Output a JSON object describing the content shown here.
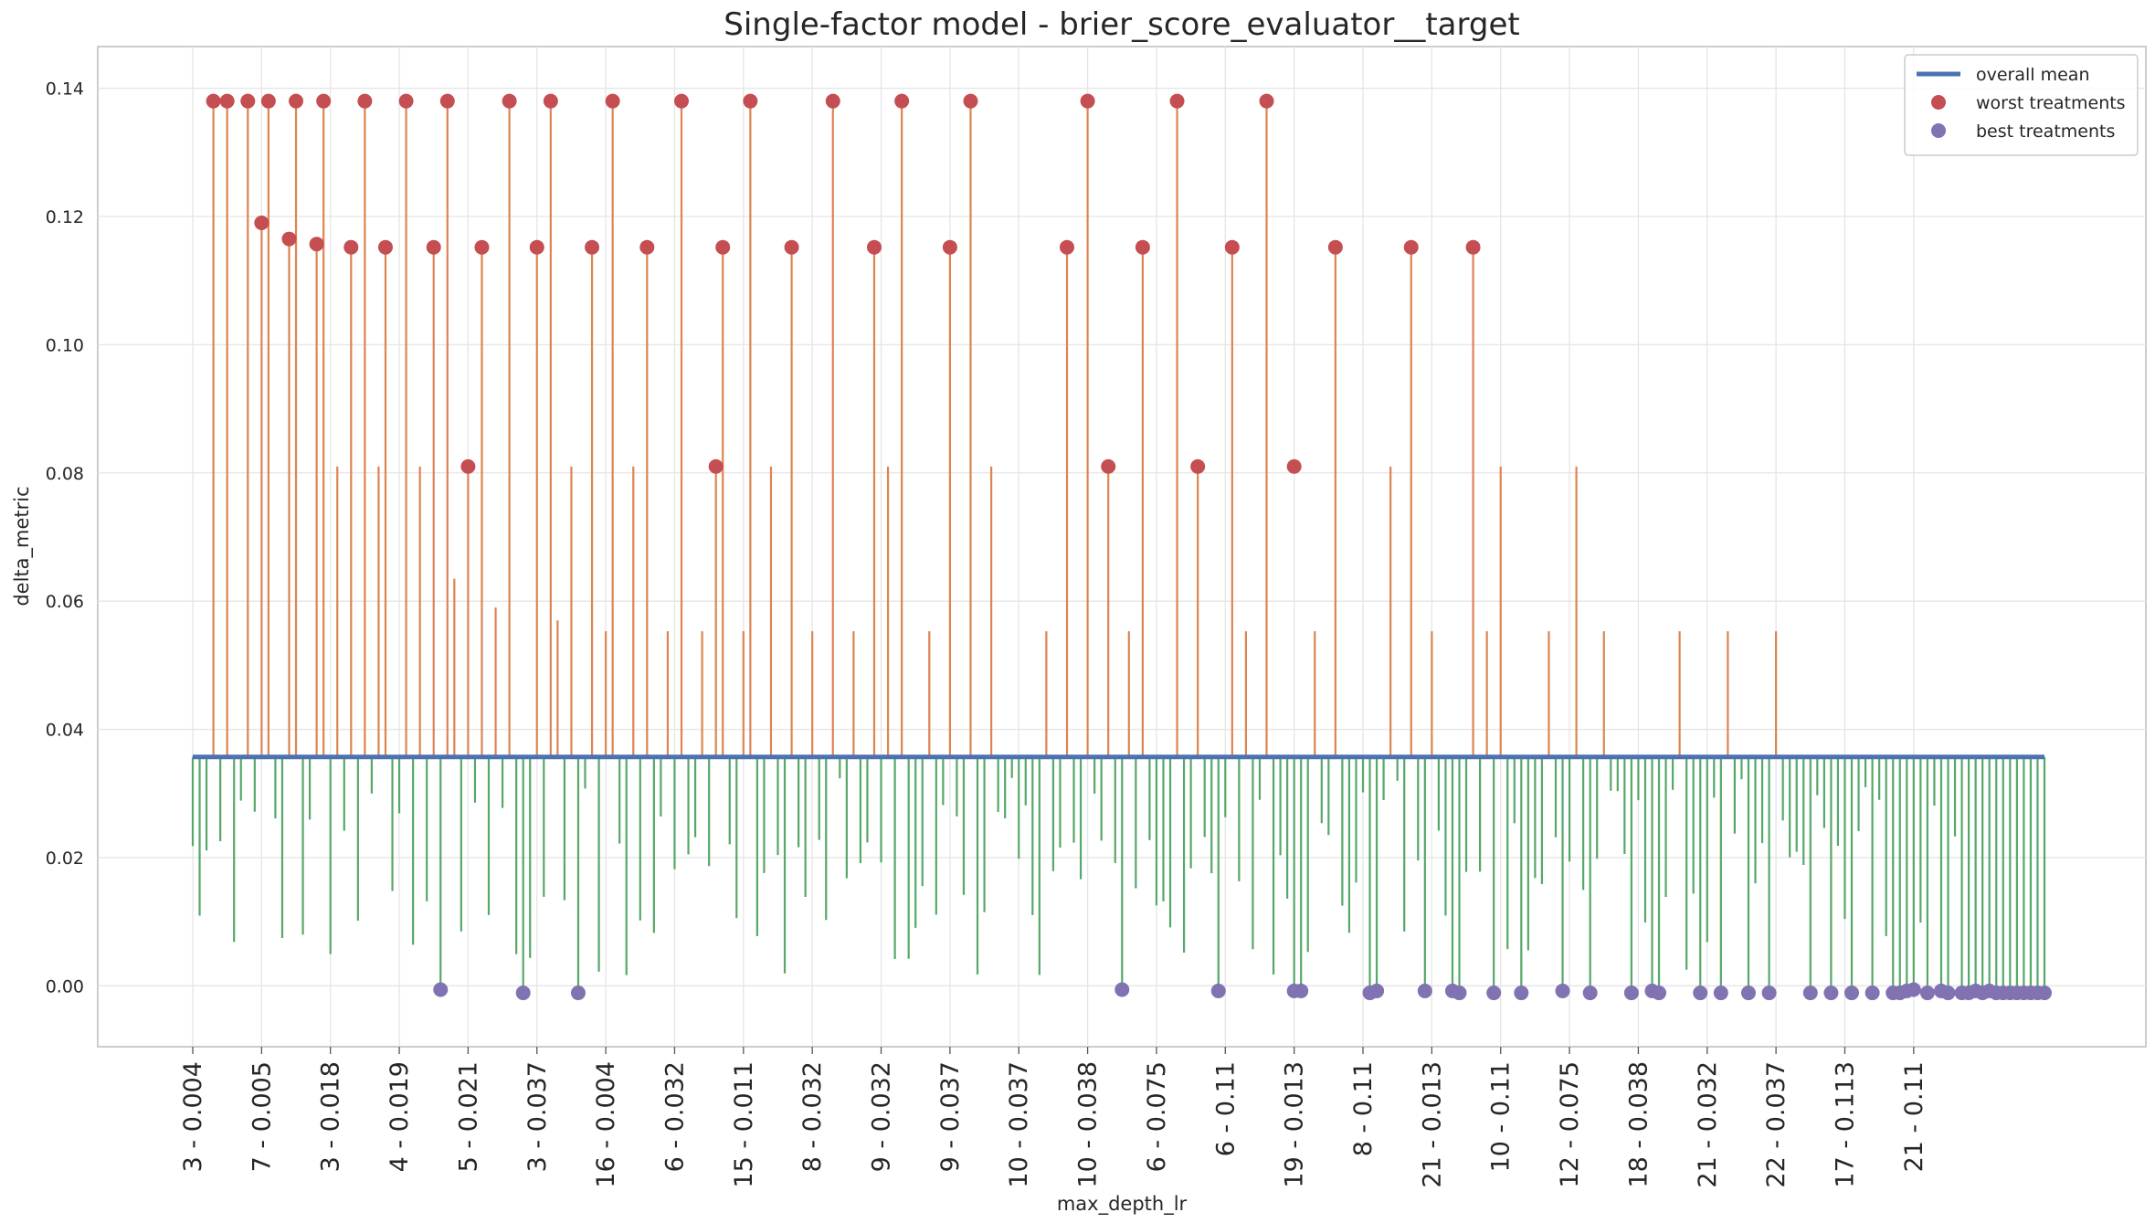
{
  "chart_data": {
    "type": "lollipop",
    "title": "Single-factor model - brier_score_evaluator__target",
    "xlabel": "max_depth_lr",
    "ylabel": "delta_metric",
    "ylim": [
      -0.0095,
      0.1465
    ],
    "yticks": [
      "0.00",
      "0.02",
      "0.04",
      "0.06",
      "0.08",
      "0.10",
      "0.12",
      "0.14"
    ],
    "ytick_values": [
      0,
      0.02,
      0.04,
      0.06,
      0.08,
      0.1,
      0.12,
      0.14
    ],
    "xtick_labels": [
      "3 - 0.004",
      "7 - 0.005",
      "3 - 0.018",
      "4 - 0.019",
      "5 - 0.021",
      "3 - 0.037",
      "16 - 0.004",
      "6 - 0.032",
      "15 - 0.011",
      "8 - 0.032",
      "9 - 0.032",
      "9 - 0.037",
      "10 - 0.037",
      "10 - 0.038",
      "6 - 0.075",
      "6 - 0.11",
      "19 - 0.013",
      "8 - 0.11",
      "21 - 0.013",
      "10 - 0.11",
      "12 - 0.075",
      "18 - 0.038",
      "21 - 0.032",
      "22 - 0.037",
      "17 - 0.113",
      "21 - 0.11"
    ],
    "n_treatments": 270,
    "tick_every": 10,
    "overall_mean": 0.0357,
    "grid": true,
    "legend_position": "top-right",
    "legend": [
      {
        "label": "overall mean",
        "kind": "line",
        "color": "#4c72b0"
      },
      {
        "label": "worst treatments",
        "kind": "marker",
        "color": "#c44e52"
      },
      {
        "label": "best treatments",
        "kind": "marker",
        "color": "#8172b2"
      }
    ],
    "colors": {
      "above_mean": "#dd8452",
      "below_mean": "#55a868",
      "mean_line": "#4c72b0",
      "worst": "#c44e52",
      "best": "#8172b2",
      "grid": "#e5e5e5",
      "frame": "#cccccc"
    },
    "worst_treatments": [
      {
        "x": 3,
        "y": 0.138
      },
      {
        "x": 5,
        "y": 0.138
      },
      {
        "x": 8,
        "y": 0.138
      },
      {
        "x": 10,
        "y": 0.119
      },
      {
        "x": 11,
        "y": 0.138
      },
      {
        "x": 14,
        "y": 0.1165
      },
      {
        "x": 15,
        "y": 0.138
      },
      {
        "x": 18,
        "y": 0.1157
      },
      {
        "x": 19,
        "y": 0.138
      },
      {
        "x": 23,
        "y": 0.1152
      },
      {
        "x": 25,
        "y": 0.138
      },
      {
        "x": 28,
        "y": 0.1152
      },
      {
        "x": 31,
        "y": 0.138
      },
      {
        "x": 35,
        "y": 0.1152
      },
      {
        "x": 37,
        "y": 0.138
      },
      {
        "x": 40,
        "y": 0.081
      },
      {
        "x": 42,
        "y": 0.1152
      },
      {
        "x": 46,
        "y": 0.138
      },
      {
        "x": 50,
        "y": 0.1152
      },
      {
        "x": 52,
        "y": 0.138
      },
      {
        "x": 58,
        "y": 0.1152
      },
      {
        "x": 61,
        "y": 0.138
      },
      {
        "x": 66,
        "y": 0.1152
      },
      {
        "x": 71,
        "y": 0.138
      },
      {
        "x": 76,
        "y": 0.081
      },
      {
        "x": 77,
        "y": 0.1152
      },
      {
        "x": 81,
        "y": 0.138
      },
      {
        "x": 87,
        "y": 0.1152
      },
      {
        "x": 93,
        "y": 0.138
      },
      {
        "x": 99,
        "y": 0.1152
      },
      {
        "x": 103,
        "y": 0.138
      },
      {
        "x": 110,
        "y": 0.1152
      },
      {
        "x": 113,
        "y": 0.138
      },
      {
        "x": 127,
        "y": 0.1152
      },
      {
        "x": 130,
        "y": 0.138
      },
      {
        "x": 133,
        "y": 0.081
      },
      {
        "x": 138,
        "y": 0.1152
      },
      {
        "x": 143,
        "y": 0.138
      },
      {
        "x": 146,
        "y": 0.081
      },
      {
        "x": 151,
        "y": 0.1152
      },
      {
        "x": 156,
        "y": 0.138
      },
      {
        "x": 160,
        "y": 0.081
      },
      {
        "x": 166,
        "y": 0.1152
      },
      {
        "x": 177,
        "y": 0.1152
      },
      {
        "x": 186,
        "y": 0.1152
      }
    ],
    "other_above_mean": [
      {
        "x": 21,
        "y": 0.081
      },
      {
        "x": 27,
        "y": 0.081
      },
      {
        "x": 33,
        "y": 0.081
      },
      {
        "x": 38,
        "y": 0.0635
      },
      {
        "x": 44,
        "y": 0.059
      },
      {
        "x": 48,
        "y": 0.081
      },
      {
        "x": 53,
        "y": 0.057
      },
      {
        "x": 55,
        "y": 0.081
      },
      {
        "x": 60,
        "y": 0.0553
      },
      {
        "x": 64,
        "y": 0.081
      },
      {
        "x": 69,
        "y": 0.0553
      },
      {
        "x": 74,
        "y": 0.0553
      },
      {
        "x": 80,
        "y": 0.0553
      },
      {
        "x": 84,
        "y": 0.081
      },
      {
        "x": 90,
        "y": 0.0553
      },
      {
        "x": 96,
        "y": 0.0553
      },
      {
        "x": 101,
        "y": 0.081
      },
      {
        "x": 107,
        "y": 0.0553
      },
      {
        "x": 116,
        "y": 0.081
      },
      {
        "x": 124,
        "y": 0.0553
      },
      {
        "x": 136,
        "y": 0.0553
      },
      {
        "x": 149,
        "y": 0.0553
      },
      {
        "x": 153,
        "y": 0.0553
      },
      {
        "x": 163,
        "y": 0.0553
      },
      {
        "x": 171,
        "y": 0.0553
      },
      {
        "x": 174,
        "y": 0.081
      },
      {
        "x": 180,
        "y": 0.0553
      },
      {
        "x": 183,
        "y": 0.081
      },
      {
        "x": 188,
        "y": 0.0553
      },
      {
        "x": 190,
        "y": 0.081
      },
      {
        "x": 197,
        "y": 0.0553
      },
      {
        "x": 201,
        "y": 0.081
      },
      {
        "x": 205,
        "y": 0.0553
      },
      {
        "x": 209,
        "y": 0.081
      },
      {
        "x": 216,
        "y": 0.0553
      },
      {
        "x": 223,
        "y": 0.0553
      },
      {
        "x": 230,
        "y": 0.0553
      }
    ],
    "best_treatments": [
      {
        "x": 36,
        "y": -0.0006
      },
      {
        "x": 48,
        "y": -0.0011
      },
      {
        "x": 56,
        "y": -0.0011
      },
      {
        "x": 135,
        "y": -0.0006
      },
      {
        "x": 149,
        "y": -0.0008
      },
      {
        "x": 160,
        "y": -0.0008
      },
      {
        "x": 161,
        "y": -0.0008
      },
      {
        "x": 171,
        "y": -0.0011
      },
      {
        "x": 172,
        "y": -0.0008
      },
      {
        "x": 179,
        "y": -0.0008
      },
      {
        "x": 183,
        "y": -0.0008
      },
      {
        "x": 184,
        "y": -0.0011
      },
      {
        "x": 189,
        "y": -0.0011
      },
      {
        "x": 193,
        "y": -0.0011
      },
      {
        "x": 199,
        "y": -0.0008
      },
      {
        "x": 203,
        "y": -0.0011
      },
      {
        "x": 209,
        "y": -0.0011
      },
      {
        "x": 212,
        "y": -0.0008
      },
      {
        "x": 213,
        "y": -0.0011
      },
      {
        "x": 219,
        "y": -0.0011
      },
      {
        "x": 222,
        "y": -0.0011
      },
      {
        "x": 226,
        "y": -0.0011
      },
      {
        "x": 229,
        "y": -0.0011
      },
      {
        "x": 235,
        "y": -0.0011
      },
      {
        "x": 238,
        "y": -0.0011
      },
      {
        "x": 241,
        "y": -0.0011
      },
      {
        "x": 244,
        "y": -0.0011
      },
      {
        "x": 247,
        "y": -0.0011
      },
      {
        "x": 248,
        "y": -0.0011
      },
      {
        "x": 249,
        "y": -0.0008
      },
      {
        "x": 250,
        "y": -0.0006
      },
      {
        "x": 252,
        "y": -0.0011
      },
      {
        "x": 254,
        "y": -0.0008
      },
      {
        "x": 255,
        "y": -0.0011
      },
      {
        "x": 257,
        "y": -0.0011
      },
      {
        "x": 258,
        "y": -0.0011
      },
      {
        "x": 259,
        "y": -0.0008
      },
      {
        "x": 260,
        "y": -0.0011
      },
      {
        "x": 261,
        "y": -0.0008
      },
      {
        "x": 262,
        "y": -0.0011
      },
      {
        "x": 263,
        "y": -0.0011
      },
      {
        "x": 264,
        "y": -0.0011
      },
      {
        "x": 265,
        "y": -0.0011
      },
      {
        "x": 266,
        "y": -0.0011
      },
      {
        "x": 267,
        "y": -0.0011
      },
      {
        "x": 268,
        "y": -0.0011
      },
      {
        "x": 269,
        "y": -0.0011
      }
    ]
  }
}
